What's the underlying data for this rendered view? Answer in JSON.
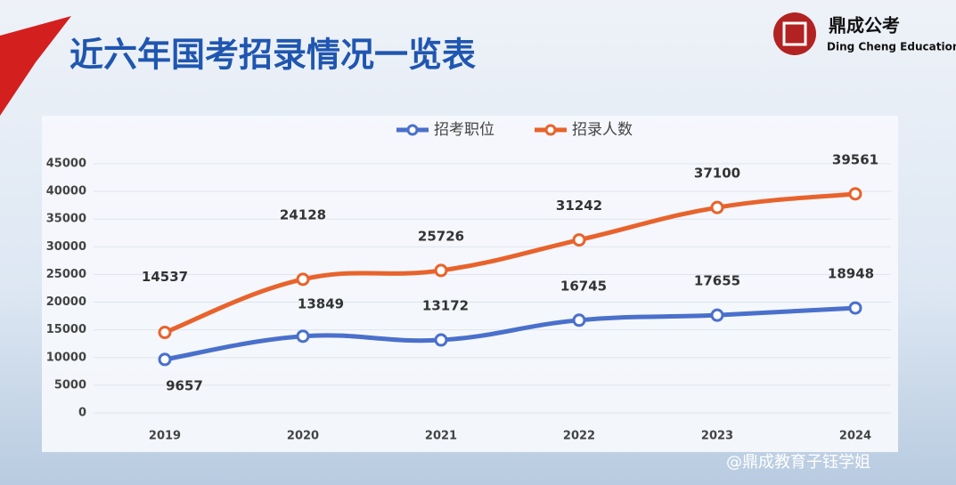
{
  "brand": {
    "name": "鼎成公考",
    "subtitle": "Ding Cheng Education"
  },
  "watermark": "@鼎成教育子钰学姐",
  "chart_data": {
    "type": "line",
    "title": "近六年国考招录情况一览表",
    "categories": [
      "2019",
      "2020",
      "2021",
      "2022",
      "2023",
      "2024"
    ],
    "series": [
      {
        "name": "招考职位",
        "color": "#4a70cc",
        "values": [
          9657,
          13849,
          13172,
          16745,
          17655,
          18948
        ]
      },
      {
        "name": "招录人数",
        "color": "#e8632c",
        "values": [
          14537,
          24128,
          25726,
          31242,
          37100,
          39561
        ]
      }
    ],
    "ylim": [
      0,
      45000
    ],
    "yticks": [
      0,
      5000,
      10000,
      15000,
      20000,
      25000,
      30000,
      35000,
      40000,
      45000
    ],
    "grid": true,
    "legend": "top"
  }
}
